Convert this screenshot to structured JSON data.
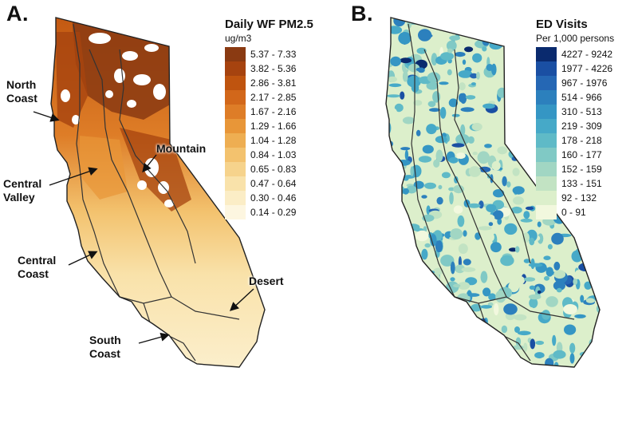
{
  "panel_a": {
    "letter": "A.",
    "legend_title": "Daily WF PM2.5",
    "legend_unit": "ug/m3",
    "legend": [
      {
        "label": "5.37 - 7.33",
        "color": "#8a3a12"
      },
      {
        "label": "3.82 - 5.36",
        "color": "#a6430f"
      },
      {
        "label": "2.86 - 3.81",
        "color": "#bf540f"
      },
      {
        "label": "2.17 - 2.85",
        "color": "#d2671a"
      },
      {
        "label": "1.67 - 2.16",
        "color": "#de7d27"
      },
      {
        "label": "1.29 - 1.66",
        "color": "#e89638"
      },
      {
        "label": "1.04 - 1.28",
        "color": "#eeae52"
      },
      {
        "label": "0.84 - 1.03",
        "color": "#f3c26e"
      },
      {
        "label": "0.65 - 0.83",
        "color": "#f6d38c"
      },
      {
        "label": "0.47 - 0.64",
        "color": "#f9e2aa"
      },
      {
        "label": "0.30 - 0.46",
        "color": "#fbedc6"
      },
      {
        "label": "0.14 - 0.29",
        "color": "#fdf6e0"
      }
    ],
    "regions": {
      "north_coast": "North\nCoast",
      "central_valley": "Central\nValley",
      "mountain": "Mountain",
      "central_coast": "Central\nCoast",
      "south_coast": "South\nCoast",
      "desert": "Desert"
    }
  },
  "panel_b": {
    "letter": "B.",
    "legend_title": "ED Visits",
    "legend_unit": "Per 1,000 persons",
    "legend": [
      {
        "label": "4227 - 9242",
        "color": "#0a2a6e"
      },
      {
        "label": "1977 - 4226",
        "color": "#1a4fa3"
      },
      {
        "label": "967 - 1976",
        "color": "#2567b4"
      },
      {
        "label": "514 - 966",
        "color": "#2c80bd"
      },
      {
        "label": "310 - 513",
        "color": "#3596c4"
      },
      {
        "label": "219 - 309",
        "color": "#46a9c8"
      },
      {
        "label": "178 - 218",
        "color": "#5fbac7"
      },
      {
        "label": "160 - 177",
        "color": "#80c9c5"
      },
      {
        "label": "152 - 159",
        "color": "#a1d6c3"
      },
      {
        "label": "133 - 151",
        "color": "#c2e3c3"
      },
      {
        "label": "92 - 132",
        "color": "#dcefcb"
      },
      {
        "label": "0 - 91",
        "color": "#f2f8de"
      }
    ]
  }
}
